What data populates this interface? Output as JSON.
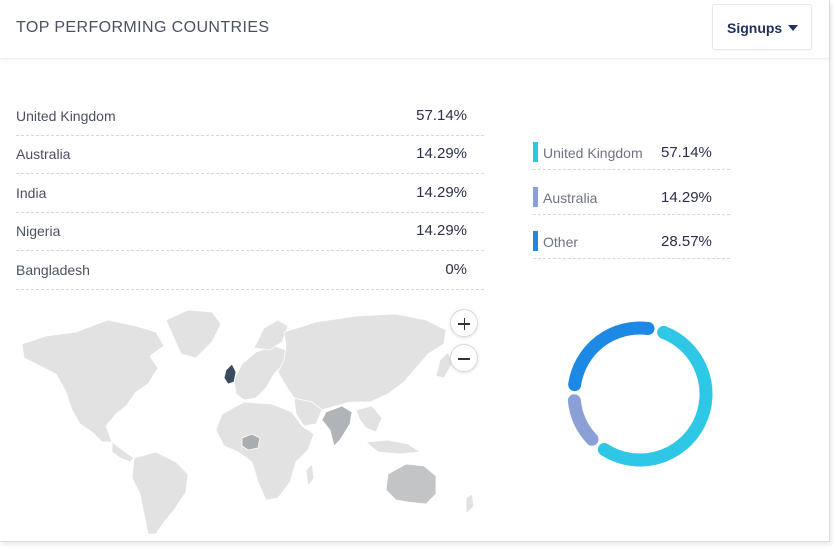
{
  "header": {
    "title": "TOP PERFORMING COUNTRIES",
    "dropdown_label": "Signups",
    "dropdown_icon": "caret-down-icon"
  },
  "countries": [
    {
      "name": "United Kingdom",
      "pct": "57.14%"
    },
    {
      "name": "Australia",
      "pct": "14.29%"
    },
    {
      "name": "India",
      "pct": "14.29%"
    },
    {
      "name": "Nigeria",
      "pct": "14.29%"
    },
    {
      "name": "Bangladesh",
      "pct": "0%"
    }
  ],
  "map": {
    "zoom_in_icon": "plus-icon",
    "zoom_out_icon": "minus-icon",
    "highlighted": [
      "United Kingdom",
      "Australia",
      "India",
      "Nigeria"
    ]
  },
  "legend": [
    {
      "name": "United Kingdom",
      "pct": "57.14%",
      "color": "#2ec8e6"
    },
    {
      "name": "Australia",
      "pct": "14.29%",
      "color": "#8aa0d6"
    },
    {
      "name": "Other",
      "pct": "28.57%",
      "color": "#1e88e5"
    }
  ],
  "chart_data": {
    "type": "pie",
    "categories": [
      "United Kingdom",
      "Australia",
      "Other"
    ],
    "values": [
      57.14,
      14.29,
      28.57
    ],
    "colors": [
      "#2ec8e6",
      "#8aa0d6",
      "#1e88e5"
    ],
    "donut": true
  }
}
